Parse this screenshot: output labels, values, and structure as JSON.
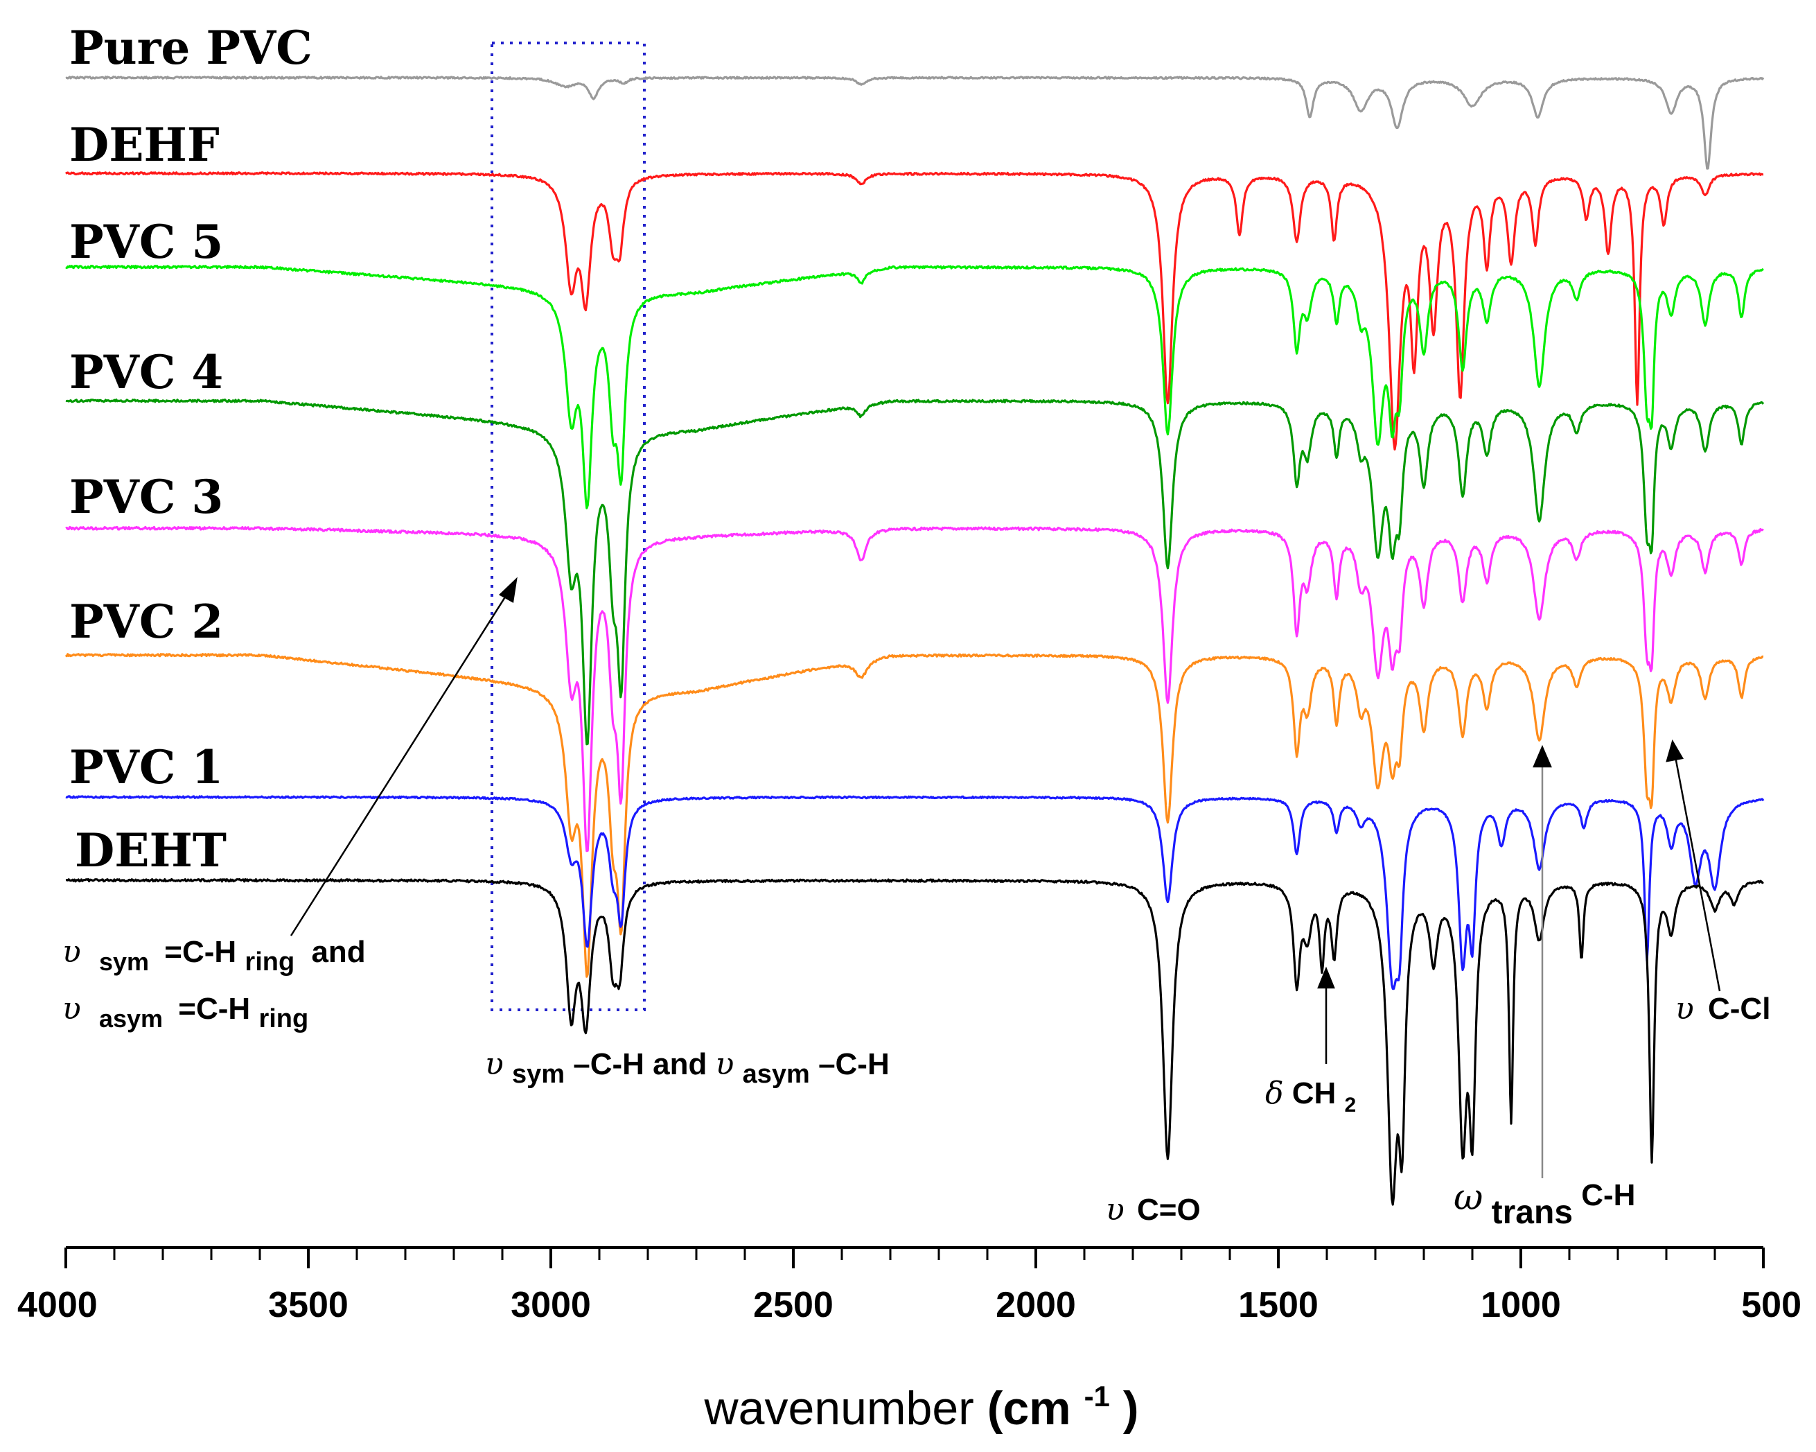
{
  "chart_data": {
    "type": "line",
    "title": "",
    "xlabel": "wavenumber (cm⁻¹)",
    "xlabel_parts": {
      "main": "wavenumber ",
      "unit_open": "(cm",
      "unit_exp": "-1",
      "unit_close": ")"
    },
    "ylabel": "",
    "xlim": [
      4000,
      500
    ],
    "x_ticks": [
      4000,
      3500,
      3000,
      2500,
      2000,
      1500,
      1000,
      500
    ],
    "tick_labels": [
      "4000",
      "3500",
      "3000",
      "2500",
      "2000",
      "1500",
      "1000",
      "500"
    ],
    "grid": false,
    "legend": "series labels placed at left of each stacked trace",
    "series": [
      {
        "name": "Pure PVC",
        "color": "#9a9a9a",
        "slope": 0,
        "noise": 1.2,
        "peaks": [
          [
            2970,
            12,
            25
          ],
          [
            2912,
            28,
            12
          ],
          [
            2850,
            8,
            8
          ],
          [
            2360,
            10,
            12
          ],
          [
            1435,
            55,
            9
          ],
          [
            1330,
            45,
            18
          ],
          [
            1255,
            70,
            14
          ],
          [
            1100,
            40,
            22
          ],
          [
            965,
            55,
            14
          ],
          [
            690,
            50,
            14
          ],
          [
            615,
            130,
            9
          ]
        ]
      },
      {
        "name": "DEHF",
        "color": "#ff1a1a",
        "slope": 0,
        "noise": 1.4,
        "peaks": [
          [
            2958,
            150,
            14
          ],
          [
            2928,
            165,
            12
          ],
          [
            2872,
            80,
            10
          ],
          [
            2858,
            90,
            10
          ],
          [
            2360,
            15,
            12
          ],
          [
            1728,
            330,
            12
          ],
          [
            1580,
            85,
            8
          ],
          [
            1462,
            95,
            9
          ],
          [
            1385,
            90,
            7
          ],
          [
            1260,
            380,
            14
          ],
          [
            1220,
            230,
            9
          ],
          [
            1180,
            200,
            10
          ],
          [
            1125,
            310,
            10
          ],
          [
            1070,
            120,
            8
          ],
          [
            1020,
            120,
            9
          ],
          [
            970,
            95,
            8
          ],
          [
            865,
            60,
            8
          ],
          [
            820,
            110,
            8
          ],
          [
            760,
            330,
            6
          ],
          [
            705,
            70,
            8
          ],
          [
            620,
            30,
            10
          ]
        ]
      },
      {
        "name": "PVC 5",
        "color": "#00ee00",
        "slope": 35,
        "noise": 1.6,
        "peaks": [
          [
            2958,
            165,
            14
          ],
          [
            2925,
            280,
            12
          ],
          [
            2872,
            140,
            10
          ],
          [
            2855,
            230,
            10
          ],
          [
            2360,
            18,
            10
          ],
          [
            1728,
            240,
            12
          ],
          [
            1462,
            110,
            8
          ],
          [
            1440,
            60,
            10
          ],
          [
            1380,
            70,
            7
          ],
          [
            1330,
            50,
            10
          ],
          [
            1295,
            230,
            14
          ],
          [
            1265,
            170,
            10
          ],
          [
            1250,
            130,
            8
          ],
          [
            1200,
            110,
            10
          ],
          [
            1120,
            140,
            10
          ],
          [
            1070,
            70,
            10
          ],
          [
            962,
            170,
            14
          ],
          [
            885,
            40,
            10
          ],
          [
            740,
            170,
            8
          ],
          [
            730,
            160,
            6
          ],
          [
            690,
            60,
            10
          ],
          [
            620,
            80,
            10
          ],
          [
            545,
            70,
            8
          ]
        ]
      },
      {
        "name": "PVC 4",
        "color": "#009900",
        "slope": 40,
        "noise": 1.6,
        "peaks": [
          [
            2958,
            180,
            14
          ],
          [
            2925,
            420,
            12
          ],
          [
            2872,
            160,
            10
          ],
          [
            2855,
            330,
            10
          ],
          [
            2360,
            16,
            10
          ],
          [
            1728,
            240,
            12
          ],
          [
            1462,
            110,
            8
          ],
          [
            1440,
            70,
            10
          ],
          [
            1380,
            70,
            7
          ],
          [
            1330,
            50,
            10
          ],
          [
            1295,
            200,
            14
          ],
          [
            1265,
            160,
            10
          ],
          [
            1250,
            120,
            8
          ],
          [
            1200,
            110,
            10
          ],
          [
            1120,
            130,
            10
          ],
          [
            1070,
            70,
            10
          ],
          [
            962,
            170,
            14
          ],
          [
            885,
            40,
            10
          ],
          [
            740,
            160,
            8
          ],
          [
            730,
            150,
            6
          ],
          [
            690,
            60,
            10
          ],
          [
            620,
            70,
            10
          ],
          [
            545,
            60,
            8
          ]
        ]
      },
      {
        "name": "PVC 3",
        "color": "#ff33ff",
        "slope": 10,
        "noise": 1.8,
        "peaks": [
          [
            2958,
            180,
            14
          ],
          [
            2925,
            420,
            12
          ],
          [
            2872,
            160,
            10
          ],
          [
            2855,
            330,
            10
          ],
          [
            2360,
            45,
            12
          ],
          [
            1728,
            250,
            12
          ],
          [
            1462,
            140,
            8
          ],
          [
            1440,
            70,
            10
          ],
          [
            1380,
            90,
            7
          ],
          [
            1330,
            60,
            10
          ],
          [
            1295,
            190,
            14
          ],
          [
            1265,
            140,
            10
          ],
          [
            1250,
            110,
            8
          ],
          [
            1200,
            100,
            10
          ],
          [
            1120,
            100,
            10
          ],
          [
            1070,
            70,
            10
          ],
          [
            962,
            130,
            14
          ],
          [
            885,
            40,
            10
          ],
          [
            740,
            150,
            8
          ],
          [
            730,
            140,
            6
          ],
          [
            690,
            60,
            10
          ],
          [
            620,
            60,
            10
          ],
          [
            545,
            50,
            8
          ]
        ]
      },
      {
        "name": "PVC 2",
        "color": "#ff8c1a",
        "slope": 50,
        "noise": 1.5,
        "peaks": [
          [
            2958,
            170,
            14
          ],
          [
            2925,
            380,
            12
          ],
          [
            2872,
            150,
            10
          ],
          [
            2855,
            300,
            10
          ],
          [
            2360,
            25,
            14
          ],
          [
            1728,
            240,
            12
          ],
          [
            1462,
            130,
            8
          ],
          [
            1440,
            70,
            10
          ],
          [
            1380,
            90,
            7
          ],
          [
            1330,
            60,
            10
          ],
          [
            1295,
            170,
            14
          ],
          [
            1265,
            120,
            10
          ],
          [
            1250,
            100,
            8
          ],
          [
            1200,
            100,
            10
          ],
          [
            1120,
            110,
            10
          ],
          [
            1070,
            70,
            10
          ],
          [
            962,
            120,
            14
          ],
          [
            885,
            40,
            10
          ],
          [
            740,
            160,
            8
          ],
          [
            730,
            150,
            6
          ],
          [
            690,
            60,
            10
          ],
          [
            620,
            60,
            10
          ],
          [
            545,
            60,
            8
          ]
        ]
      },
      {
        "name": "PVC 1",
        "color": "#1a1aff",
        "slope": 0,
        "noise": 1.2,
        "peaks": [
          [
            2958,
            70,
            14
          ],
          [
            2925,
            200,
            12
          ],
          [
            2872,
            80,
            10
          ],
          [
            2855,
            160,
            10
          ],
          [
            1728,
            150,
            12
          ],
          [
            1462,
            80,
            8
          ],
          [
            1380,
            45,
            7
          ],
          [
            1330,
            30,
            10
          ],
          [
            1265,
            240,
            14
          ],
          [
            1250,
            140,
            8
          ],
          [
            1120,
            220,
            10
          ],
          [
            1100,
            180,
            8
          ],
          [
            1040,
            60,
            10
          ],
          [
            962,
            100,
            14
          ],
          [
            870,
            40,
            8
          ],
          [
            740,
            230,
            6
          ],
          [
            690,
            60,
            10
          ],
          [
            640,
            110,
            14
          ],
          [
            600,
            120,
            14
          ]
        ]
      },
      {
        "name": "DEHT",
        "color": "#000000",
        "slope": 0,
        "noise": 1.6,
        "peaks": [
          [
            2958,
            180,
            12
          ],
          [
            2928,
            190,
            12
          ],
          [
            2872,
            100,
            10
          ],
          [
            2858,
            110,
            10
          ],
          [
            1728,
            400,
            12
          ],
          [
            1462,
            140,
            8
          ],
          [
            1440,
            70,
            10
          ],
          [
            1410,
            110,
            6
          ],
          [
            1385,
            100,
            7
          ],
          [
            1265,
            420,
            12
          ],
          [
            1245,
            300,
            8
          ],
          [
            1180,
            100,
            10
          ],
          [
            1120,
            350,
            10
          ],
          [
            1100,
            320,
            8
          ],
          [
            1020,
            340,
            5
          ],
          [
            962,
            80,
            12
          ],
          [
            875,
            110,
            5
          ],
          [
            730,
            400,
            6
          ],
          [
            690,
            70,
            10
          ],
          [
            600,
            40,
            12
          ],
          [
            560,
            30,
            10
          ]
        ]
      }
    ],
    "annotations": [
      {
        "id": "ring",
        "greek": "υ",
        "lines": [
          [
            "sym",
            "=C-H",
            "ring",
            "and"
          ],
          [
            "asym",
            "=C-H",
            "ring",
            ""
          ]
        ]
      },
      {
        "id": "ch",
        "text": "υsym–C-H and υasym–C-H",
        "greek": "υ",
        "sub1": "sym",
        "mid": "–C-H and ",
        "sub2": "asym",
        "end": "–C-H"
      },
      {
        "id": "co",
        "greek": "υ",
        "text": " C=O"
      },
      {
        "id": "ch2",
        "greek": "δ",
        "text": "CH",
        "sub": "2"
      },
      {
        "id": "omega",
        "greek": "ω",
        "sub": "trans",
        "text": "C-H"
      },
      {
        "id": "ccl",
        "greek": "υ",
        "text": " C-Cl"
      }
    ]
  }
}
